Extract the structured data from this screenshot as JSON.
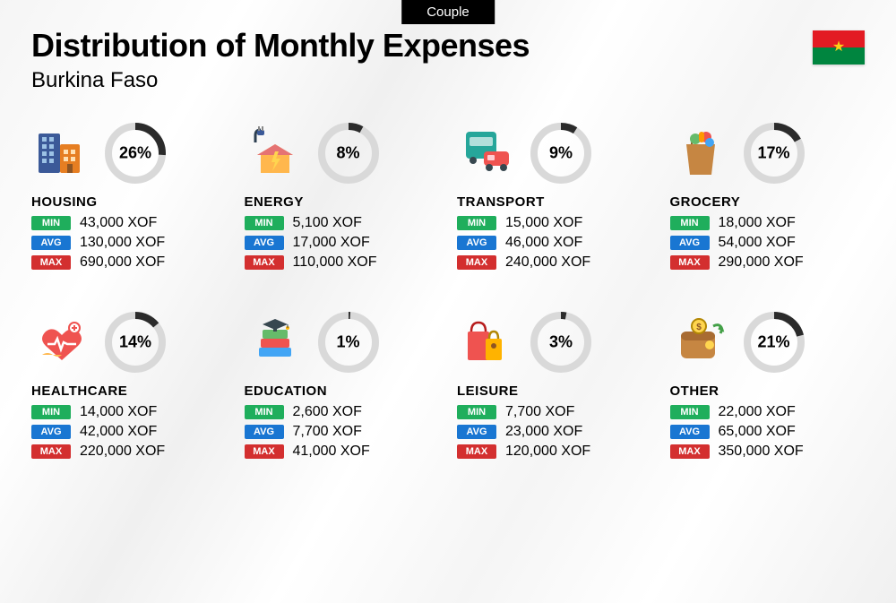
{
  "badge": "Couple",
  "title": "Distribution of Monthly Expenses",
  "subtitle": "Burkina Faso",
  "flag": {
    "top_color": "#e31b23",
    "bottom_color": "#00853f",
    "star_color": "#fcd116"
  },
  "donut": {
    "track_color": "#d9d9d9",
    "progress_color": "#2b2b2b",
    "stroke_width": 8,
    "radius": 30
  },
  "labels": {
    "min": "MIN",
    "avg": "AVG",
    "max": "MAX"
  },
  "label_colors": {
    "min": "#1fae5c",
    "avg": "#1976d2",
    "max": "#d32f2f"
  },
  "currency": "XOF",
  "categories": [
    {
      "key": "housing",
      "name": "HOUSING",
      "percent": 26,
      "min": "43,000 XOF",
      "avg": "130,000 XOF",
      "max": "690,000 XOF",
      "icon": "housing"
    },
    {
      "key": "energy",
      "name": "ENERGY",
      "percent": 8,
      "min": "5,100 XOF",
      "avg": "17,000 XOF",
      "max": "110,000 XOF",
      "icon": "energy"
    },
    {
      "key": "transport",
      "name": "TRANSPORT",
      "percent": 9,
      "min": "15,000 XOF",
      "avg": "46,000 XOF",
      "max": "240,000 XOF",
      "icon": "transport"
    },
    {
      "key": "grocery",
      "name": "GROCERY",
      "percent": 17,
      "min": "18,000 XOF",
      "avg": "54,000 XOF",
      "max": "290,000 XOF",
      "icon": "grocery"
    },
    {
      "key": "healthcare",
      "name": "HEALTHCARE",
      "percent": 14,
      "min": "14,000 XOF",
      "avg": "42,000 XOF",
      "max": "220,000 XOF",
      "icon": "healthcare"
    },
    {
      "key": "education",
      "name": "EDUCATION",
      "percent": 1,
      "min": "2,600 XOF",
      "avg": "7,700 XOF",
      "max": "41,000 XOF",
      "icon": "education"
    },
    {
      "key": "leisure",
      "name": "LEISURE",
      "percent": 3,
      "min": "7,700 XOF",
      "avg": "23,000 XOF",
      "max": "120,000 XOF",
      "icon": "leisure"
    },
    {
      "key": "other",
      "name": "OTHER",
      "percent": 21,
      "min": "22,000 XOF",
      "avg": "65,000 XOF",
      "max": "350,000 XOF",
      "icon": "other"
    }
  ]
}
